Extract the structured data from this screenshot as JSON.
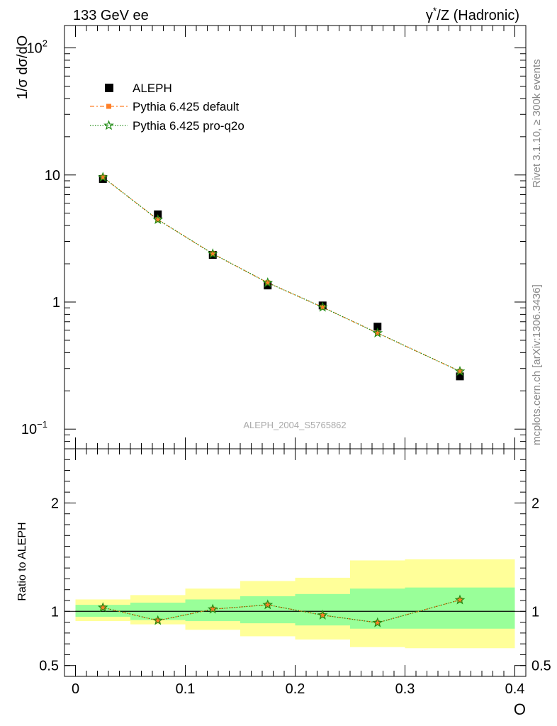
{
  "header": {
    "left": "133 GeV ee",
    "right_prefix": "γ",
    "right_sup": "*",
    "right_suffix": "/Z (Hadronic)"
  },
  "side_text": {
    "rivet": "Rivet 3.1.10, ≥ 300k events",
    "mcplots": "mcplots.cern.ch [arXiv:1306.3436]"
  },
  "watermark": "ALEPH_2004_S5765862",
  "chart_data": [
    {
      "type": "scatter",
      "panel": "main",
      "ylabel": "1/σ  dσ/dO",
      "yscale": "log",
      "ylim": [
        0.07,
        150
      ],
      "xlim": [
        -0.01,
        0.41
      ],
      "y_ticks": [
        {
          "value": 100,
          "label": "10",
          "sup": "2"
        },
        {
          "value": 10,
          "label": "10",
          "sup": ""
        },
        {
          "value": 1,
          "label": "1",
          "sup": ""
        },
        {
          "value": 0.1,
          "label": "10",
          "sup": "−1"
        }
      ],
      "legend_position": "top-left",
      "x": [
        0.025,
        0.075,
        0.125,
        0.175,
        0.225,
        0.275,
        0.35
      ],
      "series": [
        {
          "name": "ALEPH",
          "marker": "square",
          "color": "#000000",
          "values": [
            9.3,
            4.9,
            2.35,
            1.35,
            0.94,
            0.64,
            0.26
          ]
        },
        {
          "name": "Pythia 6.425 default",
          "marker": "square-small",
          "color": "#ff7f27",
          "values": [
            9.6,
            4.45,
            2.4,
            1.42,
            0.91,
            0.57,
            0.285
          ]
        },
        {
          "name": "Pythia 6.425 pro-q2o",
          "marker": "star",
          "color": "#1e8a12",
          "values": [
            9.6,
            4.45,
            2.4,
            1.42,
            0.91,
            0.57,
            0.285
          ]
        }
      ]
    },
    {
      "type": "scatter",
      "panel": "ratio",
      "ylabel": "Ratio to ALEPH",
      "xlabel": "O",
      "ylim": [
        0.4,
        2.5
      ],
      "xlim": [
        -0.01,
        0.41
      ],
      "y_ticks": [
        0.5,
        1,
        2
      ],
      "x_ticks": [
        0,
        0.1,
        0.2,
        0.3,
        0.4
      ],
      "x_tick_labels": [
        "0",
        "0.1",
        "0.2",
        "0.3",
        "0.4"
      ],
      "y_tick_labels": [
        "0.5",
        "1",
        "2"
      ],
      "bins": [
        [
          0,
          0.05
        ],
        [
          0.05,
          0.1
        ],
        [
          0.1,
          0.15
        ],
        [
          0.15,
          0.2
        ],
        [
          0.2,
          0.25
        ],
        [
          0.25,
          0.3
        ],
        [
          0.3,
          0.4
        ]
      ],
      "band_stat": [
        [
          0.95,
          1.06
        ],
        [
          0.92,
          1.08
        ],
        [
          0.91,
          1.11
        ],
        [
          0.89,
          1.14
        ],
        [
          0.87,
          1.16
        ],
        [
          0.84,
          1.21
        ],
        [
          0.84,
          1.22
        ]
      ],
      "band_total": [
        [
          0.91,
          1.11
        ],
        [
          0.88,
          1.15
        ],
        [
          0.83,
          1.21
        ],
        [
          0.77,
          1.28
        ],
        [
          0.74,
          1.31
        ],
        [
          0.67,
          1.47
        ],
        [
          0.66,
          1.48
        ]
      ],
      "x": [
        0.025,
        0.075,
        0.125,
        0.175,
        0.225,
        0.275,
        0.35
      ],
      "series": [
        {
          "name": "Pythia 6.425 default",
          "color": "#ff7f27",
          "values": [
            1.035,
            0.915,
            1.02,
            1.06,
            0.965,
            0.895,
            1.105
          ]
        },
        {
          "name": "Pythia 6.425 pro-q2o",
          "color": "#1e8a12",
          "values": [
            1.035,
            0.915,
            1.02,
            1.06,
            0.965,
            0.895,
            1.105
          ]
        }
      ],
      "colors": {
        "stat": "#99ff99",
        "total": "#ffff99"
      }
    }
  ]
}
